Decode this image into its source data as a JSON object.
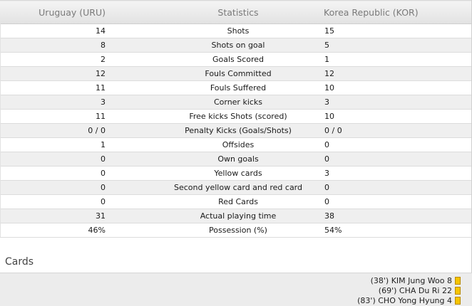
{
  "header": {
    "home": "Uruguay (URU)",
    "title": "Statistics",
    "away": "Korea Republic (KOR)"
  },
  "rows": [
    {
      "label": "Shots",
      "home": "14",
      "away": "15"
    },
    {
      "label": "Shots on goal",
      "home": "8",
      "away": "5"
    },
    {
      "label": "Goals Scored",
      "home": "2",
      "away": "1"
    },
    {
      "label": "Fouls Committed",
      "home": "12",
      "away": "12"
    },
    {
      "label": "Fouls Suffered",
      "home": "11",
      "away": "10"
    },
    {
      "label": "Corner kicks",
      "home": "3",
      "away": "3"
    },
    {
      "label": "Free kicks Shots (scored)",
      "home": "11",
      "away": "10"
    },
    {
      "label": "Penalty Kicks (Goals/Shots)",
      "home": "0 / 0",
      "away": "0 / 0"
    },
    {
      "label": "Offsides",
      "home": "1",
      "away": "0"
    },
    {
      "label": "Own goals",
      "home": "0",
      "away": "0"
    },
    {
      "label": "Yellow cards",
      "home": "0",
      "away": "3"
    },
    {
      "label": "Second yellow card and red card",
      "home": "0",
      "away": "0"
    },
    {
      "label": "Red Cards",
      "home": "0",
      "away": "0"
    },
    {
      "label": "Actual playing time",
      "home": "31",
      "away": "38"
    },
    {
      "label": "Possession (%)",
      "home": "46%",
      "away": "54%"
    }
  ],
  "cards": {
    "title": "Cards",
    "entries": [
      {
        "text": "(38') KIM Jung Woo 8",
        "icon": "yellow-card-icon",
        "color": "#f5c400"
      },
      {
        "text": "(69') CHA Du Ri 22",
        "icon": "yellow-card-icon",
        "color": "#f5c400"
      },
      {
        "text": "(83') CHO Yong Hyung 4",
        "icon": "yellow-card-icon",
        "color": "#f5c400"
      }
    ]
  }
}
